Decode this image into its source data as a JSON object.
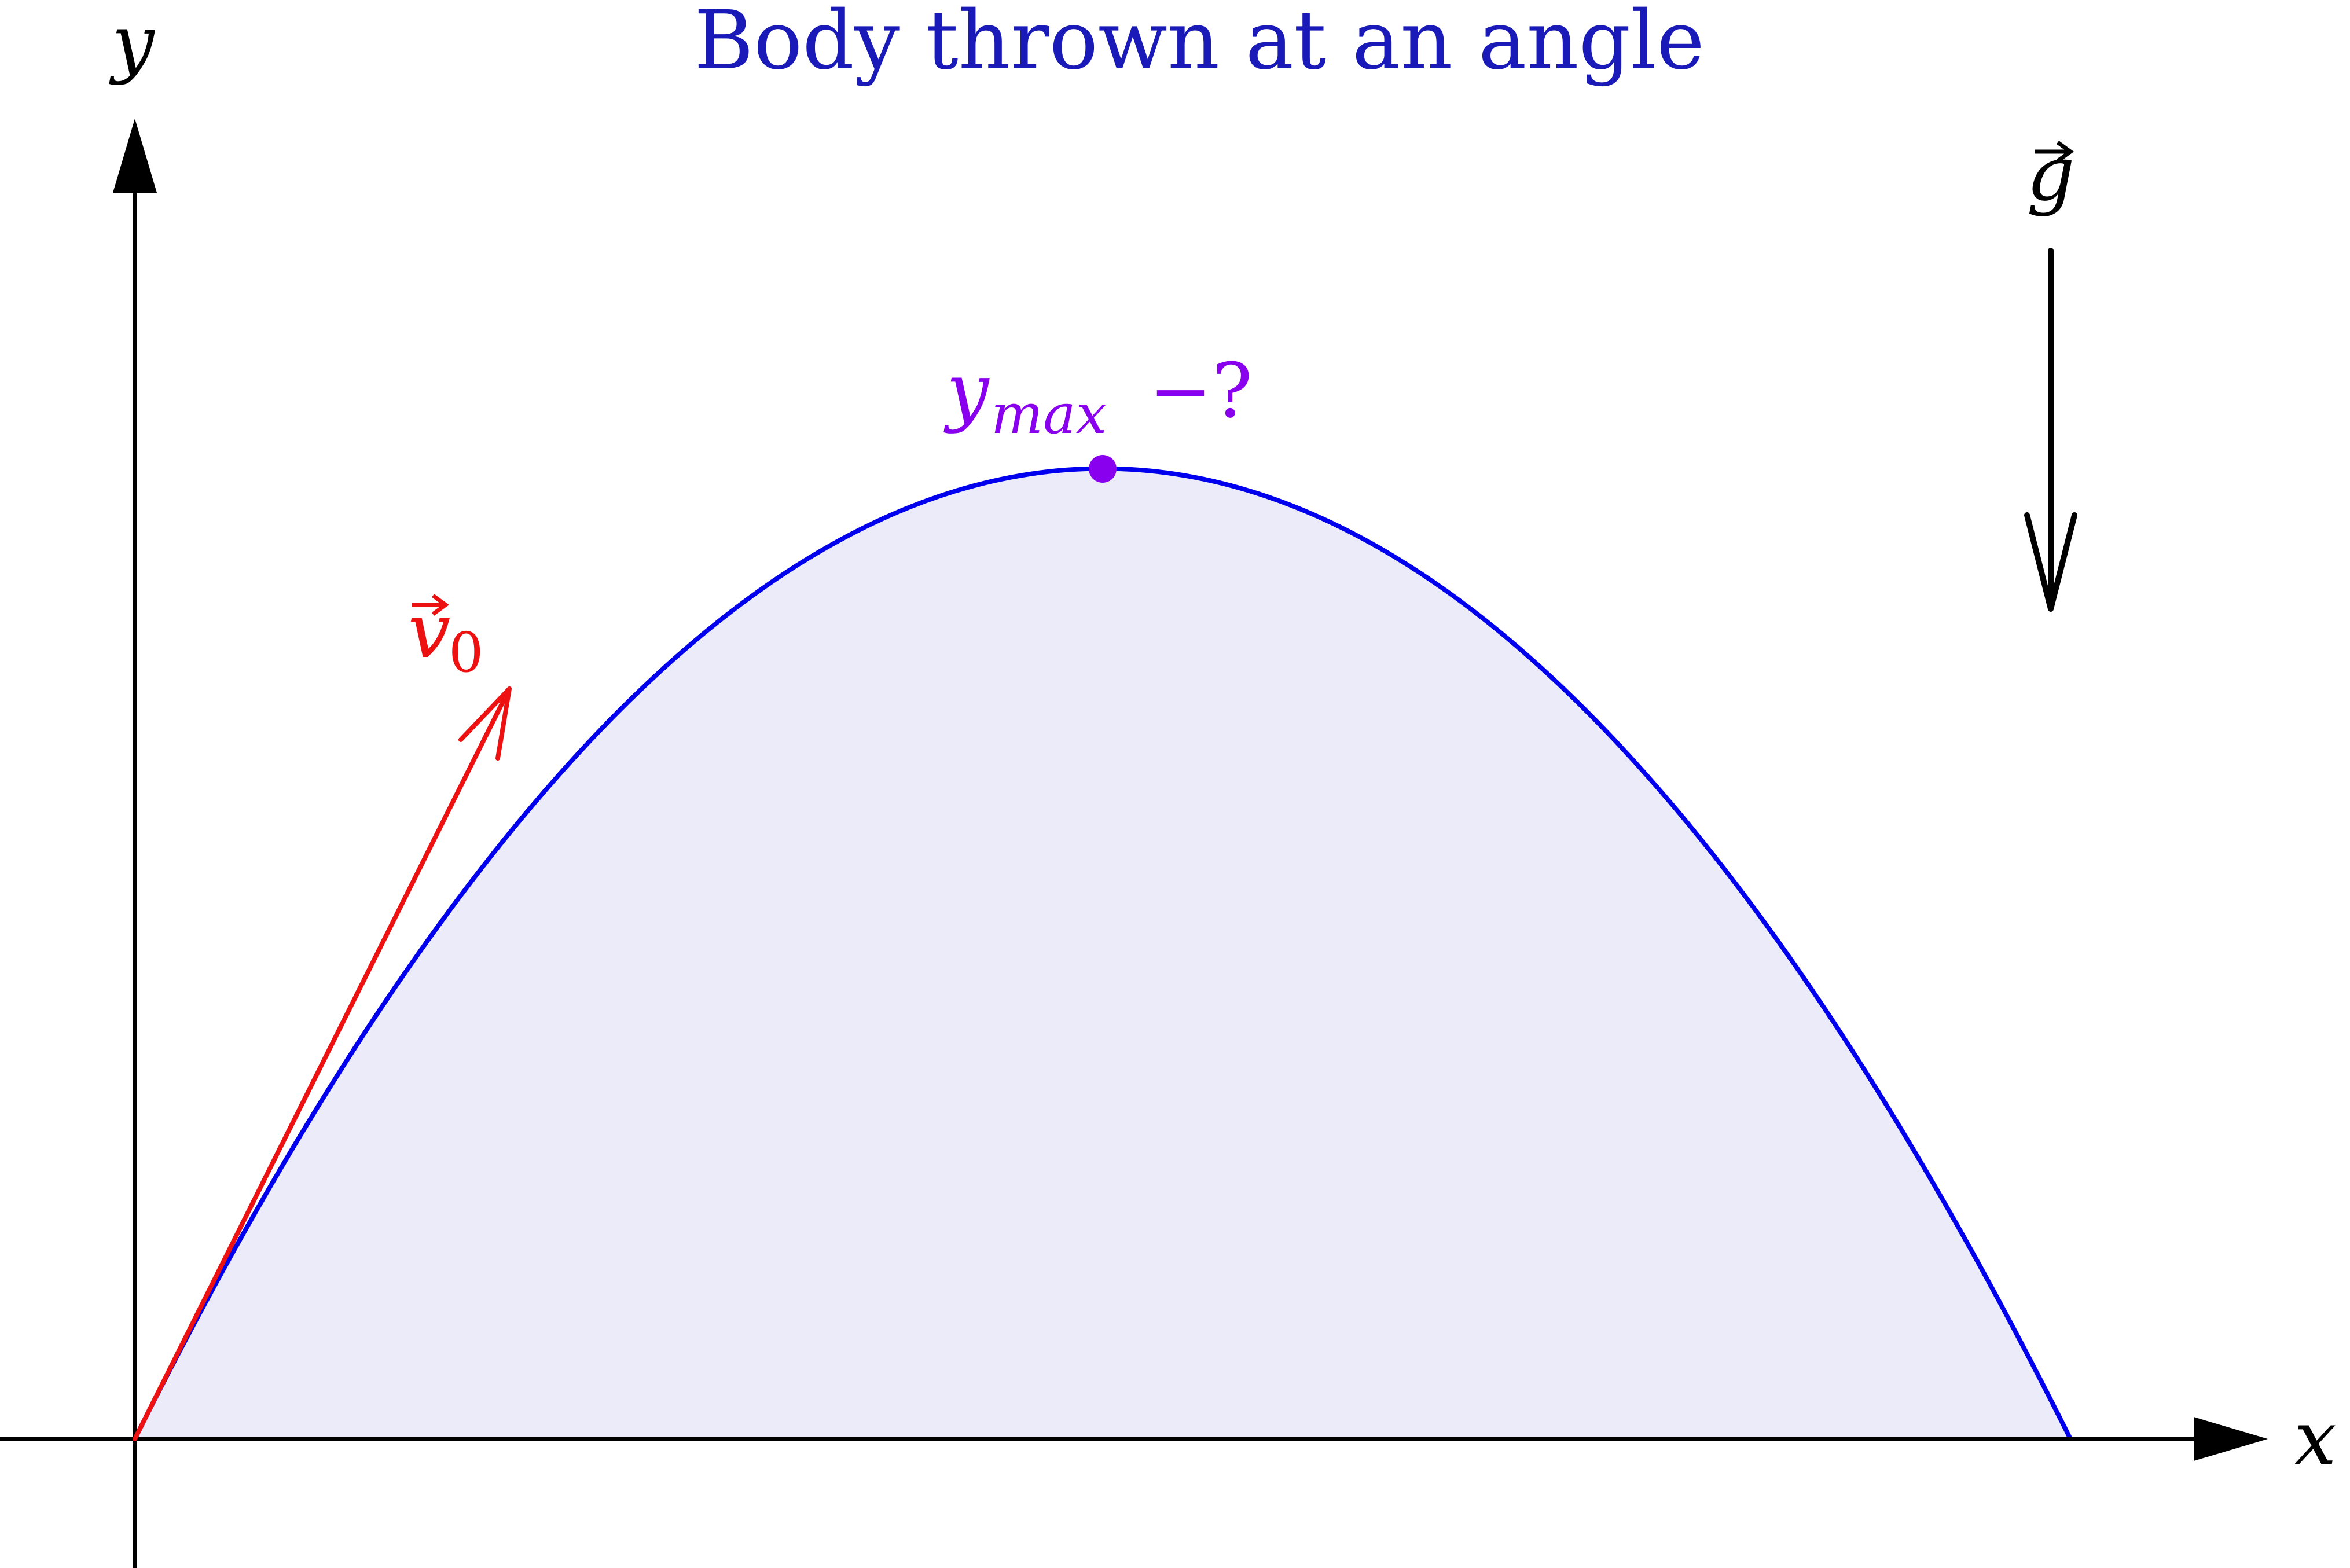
{
  "title": "Body thrown at an angle",
  "axes": {
    "x_label": "x",
    "y_label": "y"
  },
  "labels": {
    "gravity_base": "g",
    "velocity_base": "v",
    "velocity_subscript": "0",
    "max_base": "y",
    "max_subscript": "max",
    "max_suffix": "−?"
  },
  "colors": {
    "title": "#1a1ab8",
    "trajectory": "#0000ee",
    "fill": "#ebebfa",
    "velocity": "#ee1111",
    "apex": "#8800ee",
    "axes": "#000000"
  },
  "icons": {
    "x_axis_arrowhead": "arrow-right-icon",
    "y_axis_arrowhead": "arrow-up-icon",
    "gravity_arrow": "arrow-down-icon",
    "velocity_arrow": "arrow-up-right-icon"
  }
}
